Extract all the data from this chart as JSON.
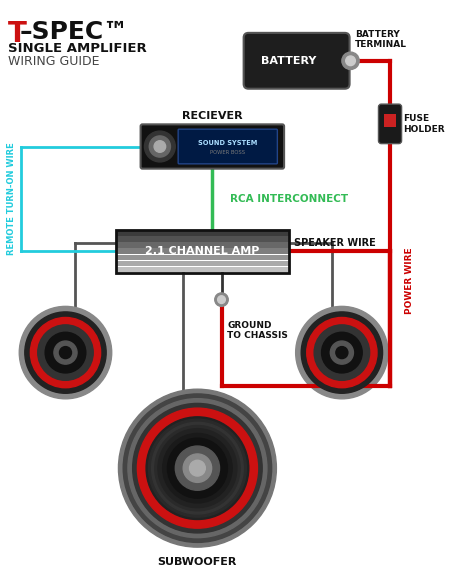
{
  "bg_color": "#ffffff",
  "label_battery": "BATTERY",
  "label_battery_terminal": "BATTERY\nTERMINAL",
  "label_fuse": "FUSE\nHOLDER",
  "label_receiver": "RECIEVER",
  "label_amp": "2.1 CHANNEL AMP",
  "label_rca": "RCA INTERCONNECT",
  "label_speaker_wire": "SPEAKER WIRE",
  "label_ground": "GROUND\nTO CHASSIS",
  "label_remote": "REMOTE TURN-ON WIRE",
  "label_power": "POWER WIRE",
  "label_subwoofer": "SUBWOOFER",
  "color_red": "#cc0000",
  "color_green": "#33bb55",
  "color_cyan": "#22ccdd",
  "color_dark": "#1a1a1a",
  "color_battery_box": "#222222",
  "tspec_t_color": "#cc1111",
  "tspec_rest_color": "#111111"
}
